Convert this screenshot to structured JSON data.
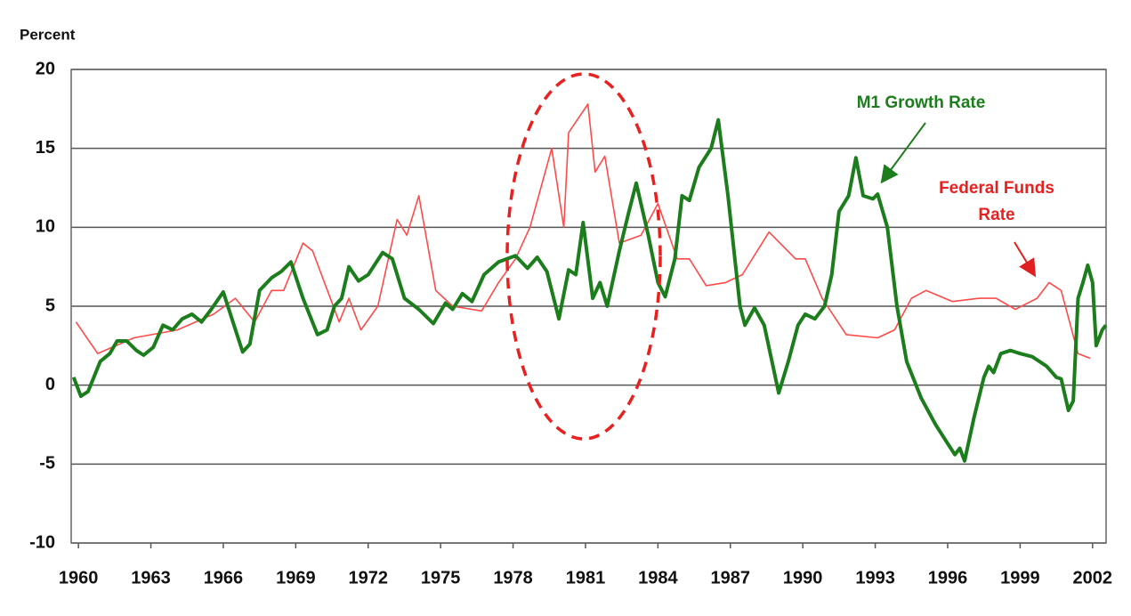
{
  "chart_data": {
    "type": "line",
    "y_label": "Percent",
    "xlim": [
      1959.7,
      2002.56
    ],
    "xticks": [
      1960,
      1963,
      1966,
      1969,
      1972,
      1975,
      1978,
      1981,
      1984,
      1987,
      1990,
      1993,
      1996,
      1999,
      2002
    ],
    "ylim": [
      -10,
      20
    ],
    "yticks": [
      -10,
      -5,
      0,
      5,
      10,
      15,
      20
    ],
    "grid": true,
    "series": [
      {
        "name": "M1 Growth Rate",
        "color": "#1c7d1c",
        "x": [
          1959.8,
          1960.1,
          1960.4,
          1960.9,
          1961.3,
          1961.6,
          1962.0,
          1962.4,
          1962.7,
          1963.1,
          1963.5,
          1963.9,
          1964.3,
          1964.7,
          1965.1,
          1965.5,
          1966.0,
          1966.4,
          1966.8,
          1967.1,
          1967.5,
          1968.0,
          1968.4,
          1968.8,
          1969.3,
          1969.9,
          1970.3,
          1970.6,
          1970.9,
          1971.2,
          1971.6,
          1972.0,
          1972.6,
          1973.0,
          1973.5,
          1974.1,
          1974.7,
          1975.2,
          1975.5,
          1975.9,
          1976.3,
          1976.8,
          1977.4,
          1978.1,
          1978.6,
          1979.0,
          1979.4,
          1979.9,
          1980.3,
          1980.6,
          1980.9,
          1981.3,
          1981.6,
          1981.9,
          1982.4,
          1982.8,
          1983.1,
          1983.6,
          1984.0,
          1984.3,
          1984.7,
          1985.0,
          1985.3,
          1985.7,
          1986.2,
          1986.5,
          1986.9,
          1987.4,
          1987.6,
          1988.0,
          1988.4,
          1989.0,
          1989.4,
          1989.8,
          1990.1,
          1990.5,
          1990.9,
          1991.2,
          1991.5,
          1991.9,
          1992.2,
          1992.5,
          1992.9,
          1993.1,
          1993.5,
          1993.9,
          1994.3,
          1994.9,
          1995.5,
          1996.0,
          1996.3,
          1996.5,
          1996.7,
          1997.1,
          1997.5,
          1997.7,
          1997.9,
          1998.2,
          1998.6,
          1999.0,
          1999.5,
          2000.1,
          2000.5,
          2000.7,
          2001.0,
          2001.2,
          2001.4,
          2001.6,
          2001.8,
          2002.0,
          2002.15,
          2002.4,
          2002.55
        ],
        "values": [
          0.5,
          -0.7,
          -0.4,
          1.5,
          2.0,
          2.8,
          2.8,
          2.2,
          1.9,
          2.4,
          3.8,
          3.5,
          4.2,
          4.5,
          4.0,
          4.8,
          5.9,
          4.0,
          2.1,
          2.6,
          6.0,
          6.8,
          7.2,
          7.8,
          5.5,
          3.2,
          3.5,
          5.0,
          5.5,
          7.5,
          6.6,
          7.0,
          8.4,
          8.0,
          5.5,
          4.8,
          3.9,
          5.2,
          4.8,
          5.8,
          5.3,
          7.0,
          7.8,
          8.2,
          7.4,
          8.1,
          7.2,
          4.2,
          7.3,
          7.0,
          10.3,
          5.5,
          6.5,
          5.0,
          8.5,
          11.0,
          12.8,
          9.5,
          6.5,
          5.6,
          8.0,
          12.0,
          11.7,
          13.8,
          15.0,
          16.8,
          12.0,
          5.0,
          3.8,
          4.9,
          3.8,
          -0.5,
          1.5,
          3.8,
          4.5,
          4.2,
          5.0,
          7.0,
          11.0,
          12.0,
          14.4,
          12.0,
          11.8,
          12.1,
          10.0,
          5.0,
          1.5,
          -0.8,
          -2.5,
          -3.7,
          -4.4,
          -4.0,
          -4.8,
          -2.0,
          0.5,
          1.2,
          0.8,
          2.0,
          2.2,
          2.0,
          1.8,
          1.2,
          0.5,
          0.4,
          -1.6,
          -1.0,
          5.5,
          6.5,
          7.6,
          6.5,
          2.5,
          3.5,
          3.8
        ]
      },
      {
        "name": "Federal Funds Rate",
        "color": "#ff4a4a",
        "x": [
          1959.9,
          1960.8,
          1962.3,
          1964.1,
          1965.6,
          1966.5,
          1967.3,
          1968.0,
          1968.5,
          1969.3,
          1969.7,
          1970.8,
          1971.2,
          1971.7,
          1972.4,
          1973.2,
          1973.6,
          1974.1,
          1974.8,
          1975.5,
          1976.7,
          1977.4,
          1978.1,
          1978.7,
          1979.6,
          1980.1,
          1980.3,
          1981.1,
          1981.4,
          1981.8,
          1982.4,
          1983.3,
          1984.0,
          1984.8,
          1985.3,
          1986.0,
          1986.8,
          1987.5,
          1988.6,
          1989.7,
          1990.1,
          1990.8,
          1991.8,
          1993.1,
          1993.8,
          1994.5,
          1995.1,
          1996.2,
          1997.3,
          1998.0,
          1998.8,
          1999.7,
          2000.2,
          2000.7,
          2001.4,
          2001.9
        ],
        "values": [
          4.0,
          2.0,
          3.0,
          3.5,
          4.5,
          5.5,
          4.0,
          6.0,
          6.0,
          9.0,
          8.5,
          4.0,
          5.5,
          3.5,
          5.0,
          10.5,
          9.5,
          12.0,
          6.0,
          5.0,
          4.7,
          6.5,
          8.0,
          10.0,
          15.0,
          10.0,
          16.0,
          17.8,
          13.5,
          14.5,
          9.0,
          9.5,
          11.5,
          8.0,
          8.0,
          6.3,
          6.5,
          7.0,
          9.7,
          8.0,
          8.0,
          5.5,
          3.2,
          3.0,
          3.5,
          5.5,
          6.0,
          5.3,
          5.5,
          5.5,
          4.8,
          5.5,
          6.5,
          6.0,
          2.0,
          1.7
        ]
      }
    ]
  }
}
